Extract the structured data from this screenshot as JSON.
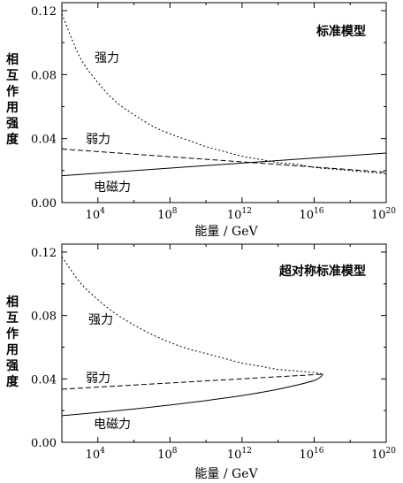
{
  "chart_data": [
    {
      "type": "line",
      "title": "标准模型",
      "xlabel": "能量 / GeV",
      "ylabel": "相互作用强度",
      "x_scale": "log10",
      "xlim_exponent": [
        2,
        20
      ],
      "ylim": [
        0,
        0.125
      ],
      "x_ticks": [
        {
          "base": "10",
          "exp": "4",
          "value": 10000.0
        },
        {
          "base": "10",
          "exp": "8",
          "value": 100000000.0
        },
        {
          "base": "10",
          "exp": "12",
          "value": 1000000000000.0
        },
        {
          "base": "10",
          "exp": "16",
          "value": 1e+16
        },
        {
          "base": "10",
          "exp": "20",
          "value": 1e+20
        }
      ],
      "y_ticks": [
        "0.00",
        "0.04",
        "0.08",
        "0.12"
      ],
      "y_tick_values": [
        0,
        0.04,
        0.08,
        0.12
      ],
      "series": [
        {
          "name": "强力",
          "dash": "dotted",
          "x_exp": [
            2,
            3,
            4,
            5,
            6,
            7,
            8,
            9,
            10,
            11,
            12,
            13,
            14,
            15,
            16,
            17,
            18,
            19,
            20
          ],
          "values": [
            0.118,
            0.091,
            0.075,
            0.063,
            0.055,
            0.048,
            0.043,
            0.039,
            0.035,
            0.032,
            0.029,
            0.027,
            0.025,
            0.024,
            0.022,
            0.021,
            0.02,
            0.019,
            0.018
          ]
        },
        {
          "name": "弱力",
          "dash": "dashed",
          "x_exp": [
            2,
            20
          ],
          "values": [
            0.0335,
            0.019
          ]
        },
        {
          "name": "电磁力",
          "dash": "solid",
          "x_exp": [
            2,
            20
          ],
          "values": [
            0.0168,
            0.031
          ]
        }
      ]
    },
    {
      "type": "line",
      "title": "超对称标准模型",
      "xlabel": "能量 / GeV",
      "ylabel": "相互作用强度",
      "x_scale": "log10",
      "xlim_exponent": [
        2,
        20
      ],
      "ylim": [
        0,
        0.125
      ],
      "x_ticks": [
        {
          "base": "10",
          "exp": "4",
          "value": 10000.0
        },
        {
          "base": "10",
          "exp": "8",
          "value": 100000000.0
        },
        {
          "base": "10",
          "exp": "12",
          "value": 1000000000000.0
        },
        {
          "base": "10",
          "exp": "16",
          "value": 1e+16
        },
        {
          "base": "10",
          "exp": "20",
          "value": 1e+20
        }
      ],
      "y_ticks": [
        "0.00",
        "0.04",
        "0.08",
        "0.12"
      ],
      "y_tick_values": [
        0,
        0.04,
        0.08,
        0.12
      ],
      "series": [
        {
          "name": "强力",
          "dash": "dotted",
          "x_exp": [
            2,
            3,
            4,
            5,
            6,
            7,
            8,
            9,
            10,
            11,
            12,
            13,
            14,
            15,
            16,
            16.5
          ],
          "values": [
            0.117,
            0.101,
            0.09,
            0.081,
            0.074,
            0.068,
            0.063,
            0.059,
            0.056,
            0.053,
            0.05,
            0.048,
            0.046,
            0.045,
            0.044,
            0.043
          ]
        },
        {
          "name": "弱力",
          "dash": "dashed",
          "x_exp": [
            2,
            16.5
          ],
          "values": [
            0.0335,
            0.043
          ]
        },
        {
          "name": "电磁力",
          "dash": "solid",
          "x_exp": [
            2,
            4,
            6,
            8,
            10,
            12,
            14,
            16,
            16.5
          ],
          "values": [
            0.0168,
            0.0188,
            0.021,
            0.0235,
            0.0263,
            0.0295,
            0.0335,
            0.039,
            0.043
          ]
        }
      ]
    }
  ]
}
